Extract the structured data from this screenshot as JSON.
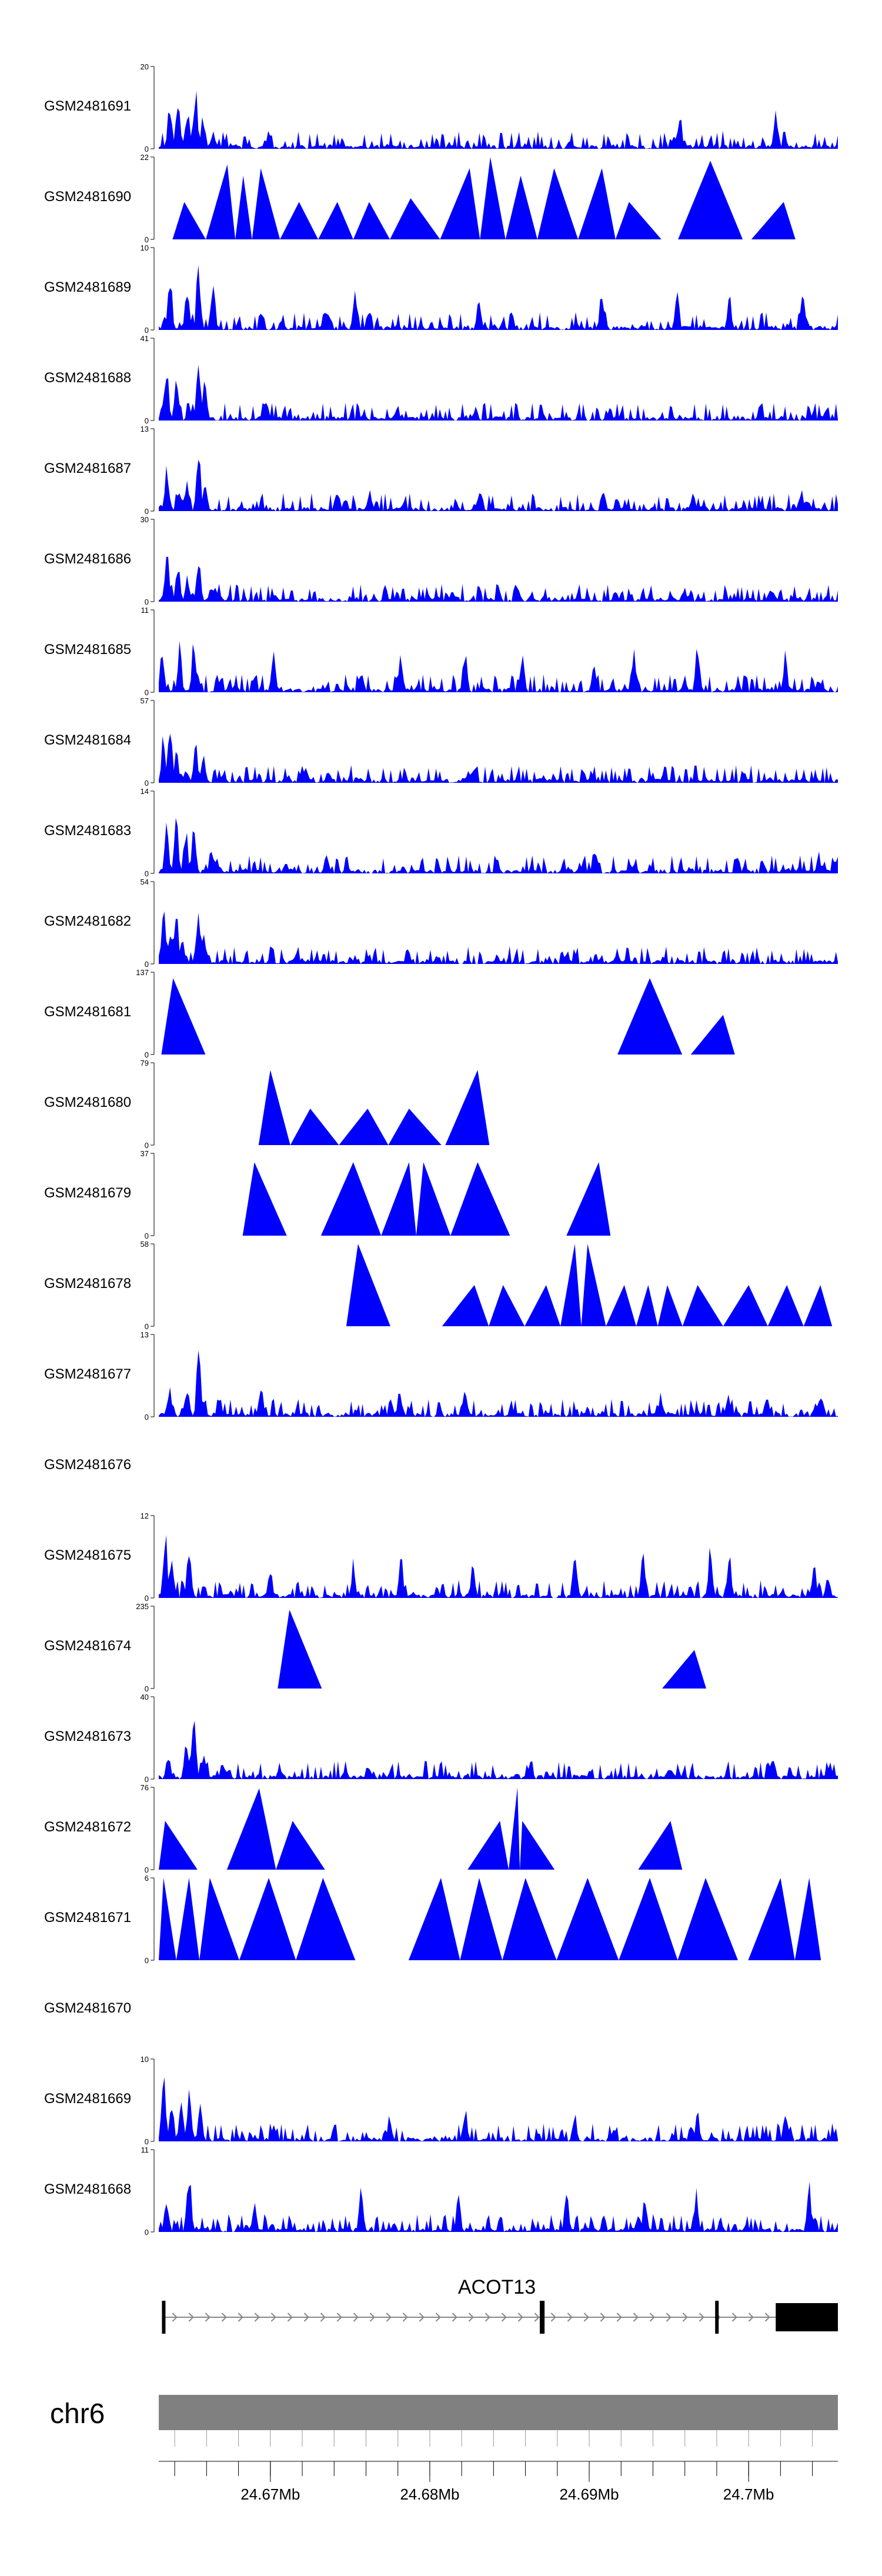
{
  "chart_data": {
    "type": "area",
    "title": "",
    "chromosome": "chr6",
    "xlabel": "",
    "ylabel": "",
    "xlim": [
      24.663,
      24.7056
    ],
    "x_ticks": [
      24.67,
      24.68,
      24.69,
      24.7
    ],
    "x_tick_labels": [
      "24.67Mb",
      "24.68Mb",
      "24.69Mb",
      "24.7Mb"
    ],
    "gene": {
      "name": "ACOT13",
      "start": 24.6632,
      "end": 24.7056,
      "exons": [
        [
          24.6632,
          24.6634
        ],
        [
          24.6869,
          24.6872
        ],
        [
          24.6979,
          24.6981
        ],
        [
          24.7017,
          24.7056
        ]
      ],
      "strand": "+"
    },
    "series": [
      {
        "name": "GSM2481691",
        "ymax": 20,
        "shape": "dense",
        "peaks": [
          [
            24.6637,
            14
          ],
          [
            24.6642,
            16
          ],
          [
            24.6648,
            12
          ],
          [
            24.6653,
            19
          ],
          [
            24.6658,
            10
          ],
          [
            24.6664,
            6
          ],
          [
            24.6699,
            4
          ],
          [
            24.6745,
            3
          ],
          [
            24.6957,
            10
          ],
          [
            24.7017,
            10
          ]
        ]
      },
      {
        "name": "GSM2481690",
        "ymax": 22,
        "shape": "triangles",
        "peaks": [
          [
            24.6646,
            10
          ],
          [
            24.6673,
            20
          ],
          [
            24.6683,
            17
          ],
          [
            24.6694,
            19
          ],
          [
            24.6718,
            10
          ],
          [
            24.6742,
            10
          ],
          [
            24.6762,
            10
          ],
          [
            24.6788,
            11
          ],
          [
            24.6825,
            19
          ],
          [
            24.6838,
            22
          ],
          [
            24.6857,
            17
          ],
          [
            24.6878,
            19
          ],
          [
            24.6908,
            19
          ],
          [
            24.6925,
            10
          ],
          [
            24.6976,
            21
          ],
          [
            24.7022,
            10
          ]
        ]
      },
      {
        "name": "GSM2481689",
        "ymax": 10,
        "shape": "dense",
        "peaks": [
          [
            24.6637,
            8
          ],
          [
            24.6648,
            7
          ],
          [
            24.6655,
            10
          ],
          [
            24.6664,
            7
          ],
          [
            24.6753,
            5
          ],
          [
            24.6831,
            5
          ],
          [
            24.6908,
            6
          ],
          [
            24.6955,
            6
          ],
          [
            24.6988,
            5
          ],
          [
            24.7034,
            5
          ]
        ]
      },
      {
        "name": "GSM2481688",
        "ymax": 41,
        "shape": "dense",
        "peaks": [
          [
            24.6635,
            28
          ],
          [
            24.6641,
            22
          ],
          [
            24.6649,
            8
          ],
          [
            24.6655,
            38
          ],
          [
            24.6659,
            30
          ],
          [
            24.6702,
            3
          ],
          [
            24.6826,
            3
          ],
          [
            24.7046,
            3
          ]
        ]
      },
      {
        "name": "GSM2481687",
        "ymax": 13,
        "shape": "dense",
        "peaks": [
          [
            24.6635,
            8
          ],
          [
            24.6643,
            4
          ],
          [
            24.6648,
            5
          ],
          [
            24.6655,
            12
          ],
          [
            24.6659,
            6
          ],
          [
            24.6747,
            3
          ],
          [
            24.6762,
            4
          ],
          [
            24.6832,
            4
          ],
          [
            24.6909,
            4
          ],
          [
            24.6965,
            4
          ],
          [
            24.7033,
            4
          ]
        ]
      },
      {
        "name": "GSM2481686",
        "ymax": 30,
        "shape": "dense",
        "peaks": [
          [
            24.6635,
            22
          ],
          [
            24.6642,
            16
          ],
          [
            24.6648,
            12
          ],
          [
            24.6655,
            20
          ],
          [
            24.6663,
            8
          ],
          [
            24.6703,
            4
          ],
          [
            24.6772,
            5
          ],
          [
            24.6856,
            5
          ],
          [
            24.6916,
            4
          ],
          [
            24.6962,
            4
          ],
          [
            24.7016,
            4
          ]
        ]
      },
      {
        "name": "GSM2481685",
        "ymax": 11,
        "shape": "dense",
        "peaks": [
          [
            24.6632,
            6
          ],
          [
            24.6643,
            7
          ],
          [
            24.6652,
            8
          ],
          [
            24.6702,
            6
          ],
          [
            24.6782,
            6
          ],
          [
            24.6822,
            7
          ],
          [
            24.6858,
            6
          ],
          [
            24.6903,
            6
          ],
          [
            24.6928,
            6
          ],
          [
            24.6968,
            7
          ],
          [
            24.7023,
            6
          ]
        ]
      },
      {
        "name": "GSM2481684",
        "ymax": 57,
        "shape": "dense",
        "peaks": [
          [
            24.6633,
            38
          ],
          [
            24.6637,
            48
          ],
          [
            24.6641,
            25
          ],
          [
            24.6647,
            10
          ],
          [
            24.6653,
            35
          ],
          [
            24.6658,
            28
          ],
          [
            24.6747,
            3
          ],
          [
            24.6946,
            4
          ],
          [
            24.7031,
            3
          ]
        ]
      },
      {
        "name": "GSM2481683",
        "ymax": 14,
        "shape": "dense",
        "peaks": [
          [
            24.6635,
            9
          ],
          [
            24.6641,
            11
          ],
          [
            24.6647,
            9
          ],
          [
            24.6652,
            11
          ],
          [
            24.6663,
            5
          ],
          [
            24.6735,
            4
          ],
          [
            24.6903,
            4
          ],
          [
            24.6993,
            4
          ],
          [
            24.7044,
            4
          ]
        ]
      },
      {
        "name": "GSM2481682",
        "ymax": 54,
        "shape": "dense",
        "peaks": [
          [
            24.6633,
            40
          ],
          [
            24.6637,
            30
          ],
          [
            24.6641,
            50
          ],
          [
            24.6645,
            20
          ],
          [
            24.6655,
            35
          ],
          [
            24.6658,
            25
          ],
          [
            24.6745,
            3
          ],
          [
            24.6921,
            3
          ],
          [
            24.7037,
            3
          ]
        ]
      },
      {
        "name": "GSM2481681",
        "ymax": 137,
        "shape": "triangles",
        "peaks": [
          [
            24.6639,
            127
          ],
          [
            24.6938,
            127
          ],
          [
            24.6984,
            66
          ]
        ]
      },
      {
        "name": "GSM2481680",
        "ymax": 79,
        "shape": "triangles",
        "peaks": [
          [
            24.67,
            72
          ],
          [
            24.6725,
            35
          ],
          [
            24.6761,
            35
          ],
          [
            24.6787,
            35
          ],
          [
            24.683,
            72
          ]
        ]
      },
      {
        "name": "GSM2481679",
        "ymax": 37,
        "shape": "triangles",
        "peaks": [
          [
            24.669,
            33
          ],
          [
            24.6752,
            33
          ],
          [
            24.6787,
            33
          ],
          [
            24.6796,
            33
          ],
          [
            24.683,
            33
          ],
          [
            24.6906,
            33
          ]
        ]
      },
      {
        "name": "GSM2481678",
        "ymax": 58,
        "shape": "triangles",
        "peaks": [
          [
            24.6755,
            58
          ],
          [
            24.6828,
            29
          ],
          [
            24.6846,
            29
          ],
          [
            24.6873,
            29
          ],
          [
            24.6891,
            58
          ],
          [
            24.6899,
            58
          ],
          [
            24.6922,
            29
          ],
          [
            24.6937,
            29
          ],
          [
            24.6949,
            29
          ],
          [
            24.6968,
            29
          ],
          [
            24.7,
            29
          ],
          [
            24.7024,
            29
          ],
          [
            24.7045,
            29
          ]
        ]
      },
      {
        "name": "GSM2481677",
        "ymax": 13,
        "shape": "dense",
        "peaks": [
          [
            24.6637,
            5
          ],
          [
            24.6648,
            5
          ],
          [
            24.6655,
            12
          ],
          [
            24.6694,
            6
          ],
          [
            24.6781,
            5
          ],
          [
            24.6822,
            6
          ],
          [
            24.6945,
            4
          ],
          [
            24.6987,
            4
          ],
          [
            24.7046,
            4
          ]
        ]
      },
      {
        "name": "GSM2481676",
        "ymax": 0,
        "shape": "empty",
        "peaks": []
      },
      {
        "name": "GSM2481675",
        "ymax": 12,
        "shape": "dense",
        "peaks": [
          [
            24.6634,
            11
          ],
          [
            24.6638,
            8
          ],
          [
            24.6649,
            8
          ],
          [
            24.67,
            6
          ],
          [
            24.6752,
            6
          ],
          [
            24.6782,
            7
          ],
          [
            24.6827,
            7
          ],
          [
            24.6891,
            9
          ],
          [
            24.6934,
            9
          ],
          [
            24.6976,
            9
          ],
          [
            24.6988,
            7
          ],
          [
            24.7041,
            7
          ]
        ]
      },
      {
        "name": "GSM2481674",
        "ymax": 235,
        "shape": "triangles",
        "peaks": [
          [
            24.6712,
            225
          ],
          [
            24.6966,
            110
          ]
        ]
      },
      {
        "name": "GSM2481673",
        "ymax": 40,
        "shape": "dense",
        "peaks": [
          [
            24.6636,
            15
          ],
          [
            24.6647,
            18
          ],
          [
            24.6652,
            38
          ],
          [
            24.6658,
            14
          ],
          [
            24.6707,
            5
          ],
          [
            24.6763,
            5
          ],
          [
            24.6862,
            5
          ],
          [
            24.695,
            8
          ],
          [
            24.7026,
            5
          ]
        ]
      },
      {
        "name": "GSM2481672",
        "ymax": 76,
        "shape": "triangles",
        "peaks": [
          [
            24.6634,
            45
          ],
          [
            24.6693,
            75
          ],
          [
            24.6714,
            45
          ],
          [
            24.6844,
            45
          ],
          [
            24.6855,
            76
          ],
          [
            24.6858,
            45
          ],
          [
            24.6951,
            45
          ]
        ]
      },
      {
        "name": "GSM2481671",
        "ymax": 6,
        "shape": "triangles",
        "peaks": [
          [
            24.6633,
            6
          ],
          [
            24.6649,
            6
          ],
          [
            24.6662,
            6
          ],
          [
            24.6699,
            6
          ],
          [
            24.6733,
            6
          ],
          [
            24.6807,
            6
          ],
          [
            24.6831,
            6
          ],
          [
            24.686,
            6
          ],
          [
            24.6899,
            6
          ],
          [
            24.6938,
            6
          ],
          [
            24.6973,
            6
          ],
          [
            24.702,
            6
          ],
          [
            24.7038,
            6
          ]
        ]
      },
      {
        "name": "GSM2481670",
        "ymax": 0,
        "shape": "empty",
        "peaks": []
      },
      {
        "name": "GSM2481669",
        "ymax": 10,
        "shape": "dense",
        "peaks": [
          [
            24.6633,
            9
          ],
          [
            24.6638,
            6
          ],
          [
            24.6644,
            7
          ],
          [
            24.6649,
            8
          ],
          [
            24.6656,
            5
          ],
          [
            24.6775,
            4
          ],
          [
            24.6822,
            5
          ],
          [
            24.6891,
            4
          ],
          [
            24.6968,
            4
          ],
          [
            24.7023,
            4
          ]
        ]
      },
      {
        "name": "GSM2481668",
        "ymax": 11,
        "shape": "dense",
        "peaks": [
          [
            24.6635,
            6
          ],
          [
            24.6649,
            10
          ],
          [
            24.669,
            5
          ],
          [
            24.6757,
            7
          ],
          [
            24.6818,
            6
          ],
          [
            24.6886,
            7
          ],
          [
            24.6935,
            6
          ],
          [
            24.6967,
            6
          ],
          [
            24.7038,
            8
          ]
        ]
      }
    ]
  },
  "colors": {
    "fill": "#0000ff",
    "axis": "#000000",
    "ideogram": "#808080",
    "gene": "#000000",
    "intron_arrow": "#888888"
  }
}
